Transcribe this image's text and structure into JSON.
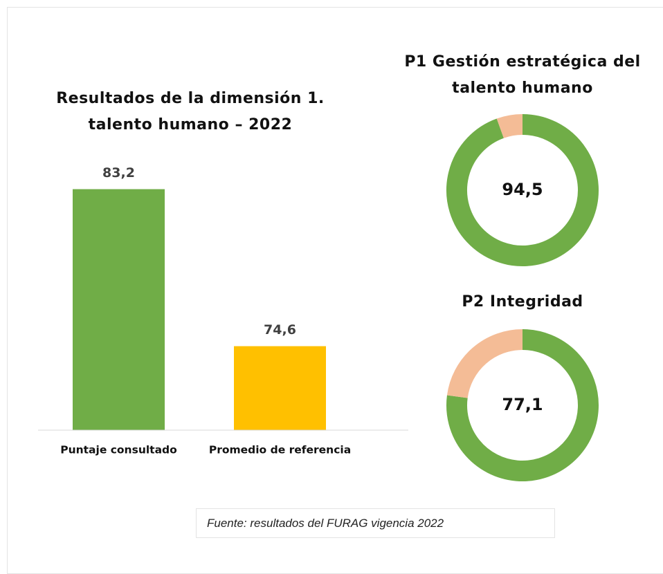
{
  "chart_data": [
    {
      "type": "bar",
      "title": "Resultados de la dimensión 1. talento humano – 2022",
      "categories": [
        "Puntaje consultado",
        "Promedio de referencia"
      ],
      "values": [
        83.2,
        74.6
      ],
      "value_labels": [
        "83,2",
        "74,6"
      ],
      "colors": [
        "#70ad47",
        "#ffc000"
      ],
      "ylim": [
        70,
        85
      ]
    },
    {
      "type": "donut",
      "title": "P1 Gestión estratégica del talento humano",
      "values": [
        94.5
      ],
      "value_labels": [
        "94,5"
      ],
      "colors": [
        "#70ad47",
        "#f4bc96"
      ]
    },
    {
      "type": "donut",
      "title": "P2 Integridad",
      "values": [
        77.1
      ],
      "value_labels": [
        "77,1"
      ],
      "colors": [
        "#70ad47",
        "#f4bc96"
      ]
    }
  ],
  "source": "Fuente: resultados del FURAG vigencia 2022"
}
